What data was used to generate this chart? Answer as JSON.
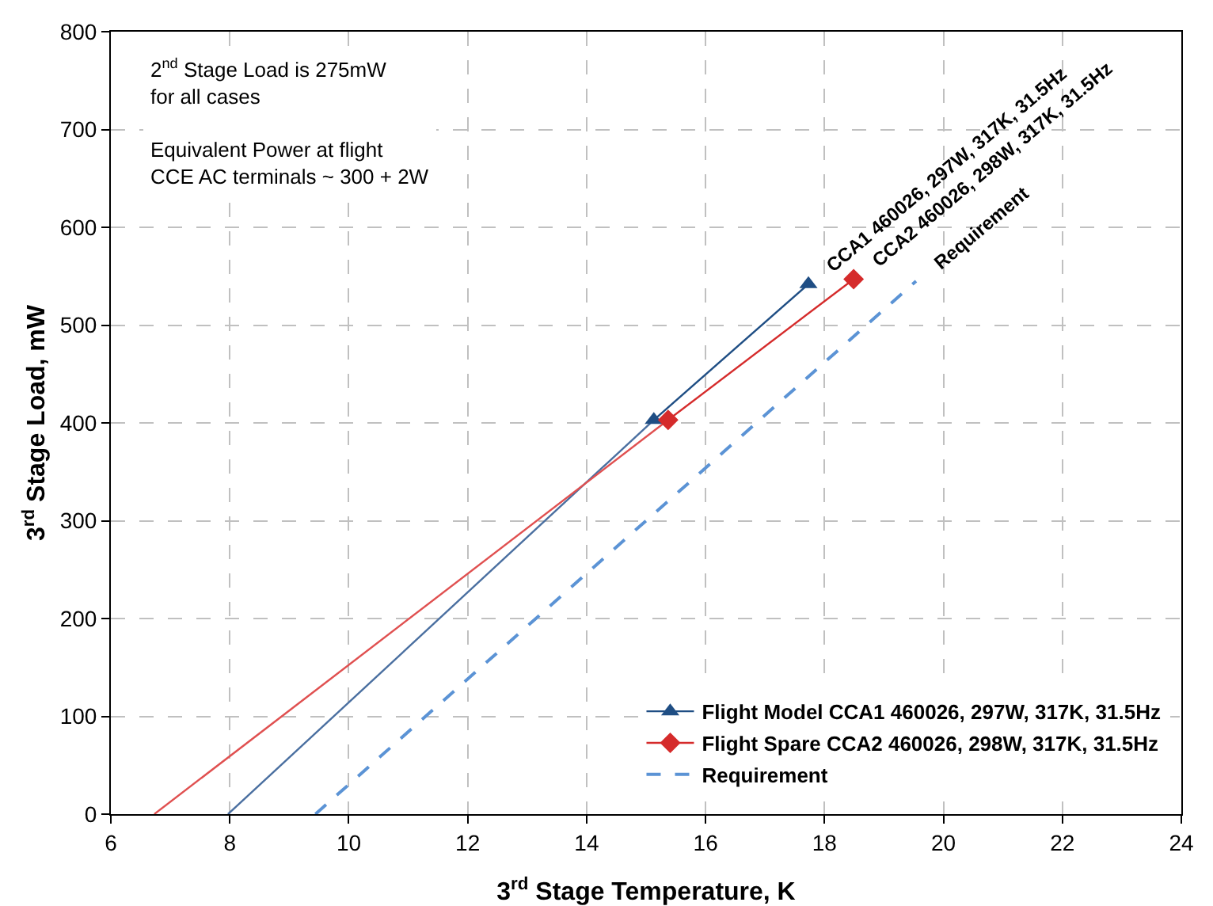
{
  "chart_data": {
    "type": "line",
    "xlabel": "3$^{rd}$ Stage Temperature, K",
    "ylabel": "3$^{rd}$ Stage Load, mW",
    "xlim": [
      6,
      24
    ],
    "xticks": [
      6,
      8,
      10,
      12,
      14,
      16,
      18,
      20,
      22,
      24
    ],
    "ylim": [
      0,
      800
    ],
    "yticks": [
      0,
      100,
      200,
      300,
      400,
      500,
      600,
      700,
      800
    ],
    "grid": true,
    "legend": "bottom right",
    "series": [
      {
        "name": "Flight Model CCA1 460026, 297W, 317K, 31.5Hz",
        "color": "#1f4e84",
        "x": [
          15.13,
          17.73
        ],
        "values": [
          403,
          542
        ],
        "marker": "triangle",
        "line_style": "solid"
      },
      {
        "name": "Flight Spare CCA2 460026, 298W, 317K, 31.5Hz",
        "color": "#d52b2b",
        "x": [
          15.37,
          18.49
        ],
        "values": [
          403,
          547
        ],
        "marker": "diamond",
        "line_style": "solid"
      },
      {
        "name": "Requirement",
        "color": "#5b93d5",
        "x": [
          9.44,
          19.54
        ],
        "values": [
          0,
          545
        ],
        "marker": "none",
        "line_style": "dashed"
      },
      {
        "color": "#4a6fa0",
        "x": [
          7.97,
          15.13
        ],
        "values": [
          0,
          403
        ],
        "marker": "none",
        "line_style": "solid"
      },
      {
        "color": "#e05050",
        "x": [
          6.73,
          15.37
        ],
        "values": [
          0,
          403
        ],
        "marker": "none",
        "line_style": "solid"
      }
    ],
    "annotations": [
      "2$^{nd}$ Stage Load is 275mW\nfor all cases\n\nEquivalent Power at flight\nCCE AC terminals ~ 300 + 2W",
      {
        "text": "CCA1 460026, 297W, 317K, 31.5Hz",
        "x": 17.73,
        "y": 542
      },
      {
        "text": "CCA2 460026, 298W, 317K, 31.5Hz",
        "x": 18.49,
        "y": 547
      },
      {
        "text": "Requirement",
        "x": 19.54,
        "y": 545
      }
    ]
  }
}
